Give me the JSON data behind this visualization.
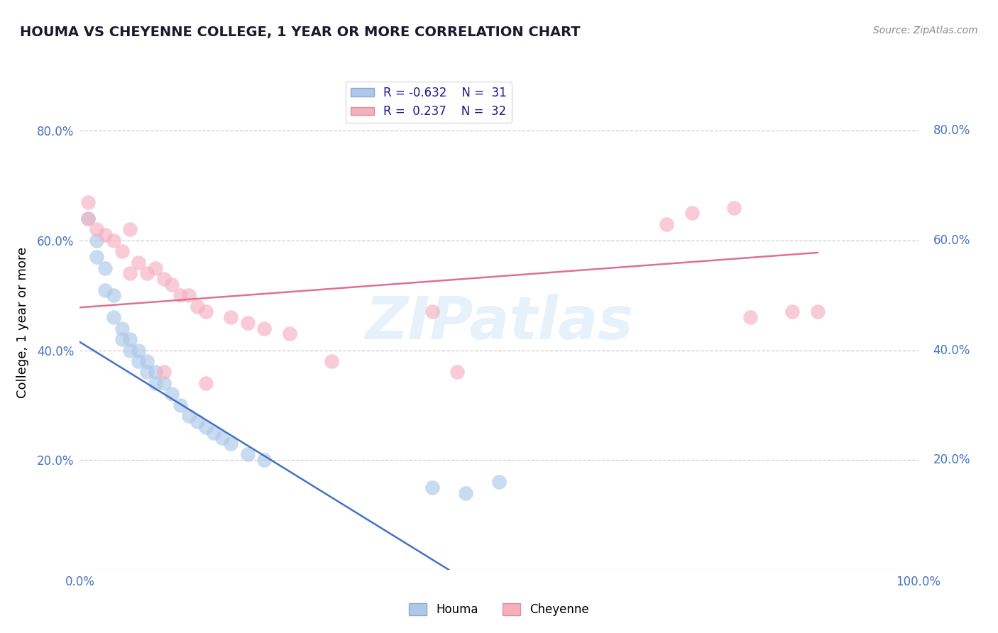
{
  "title": "HOUMA VS CHEYENNE COLLEGE, 1 YEAR OR MORE CORRELATION CHART",
  "source": "Source: ZipAtlas.com",
  "ylabel": "College, 1 year or more",
  "xlim": [
    0.0,
    1.0
  ],
  "ylim": [
    0.0,
    0.9
  ],
  "ytick_labels": [
    "20.0%",
    "40.0%",
    "60.0%",
    "80.0%"
  ],
  "ytick_values": [
    0.2,
    0.4,
    0.6,
    0.8
  ],
  "legend_houma_R": "-0.632",
  "legend_houma_N": "31",
  "legend_cheyenne_R": "0.237",
  "legend_cheyenne_N": "32",
  "houma_color": "#adc8e8",
  "cheyenne_color": "#f5b0c0",
  "houma_line_color": "#4472c4",
  "cheyenne_line_color": "#e07090",
  "watermark_text": "ZIPatlas",
  "houma_scatter_x": [
    0.01,
    0.02,
    0.02,
    0.03,
    0.03,
    0.04,
    0.04,
    0.05,
    0.05,
    0.06,
    0.06,
    0.07,
    0.07,
    0.08,
    0.08,
    0.09,
    0.09,
    0.1,
    0.11,
    0.12,
    0.13,
    0.14,
    0.15,
    0.16,
    0.17,
    0.18,
    0.2,
    0.22,
    0.42,
    0.46,
    0.5
  ],
  "houma_scatter_y": [
    0.64,
    0.6,
    0.57,
    0.55,
    0.51,
    0.5,
    0.46,
    0.44,
    0.42,
    0.42,
    0.4,
    0.4,
    0.38,
    0.38,
    0.36,
    0.36,
    0.34,
    0.34,
    0.32,
    0.3,
    0.28,
    0.27,
    0.26,
    0.25,
    0.24,
    0.23,
    0.21,
    0.2,
    0.15,
    0.14,
    0.16
  ],
  "cheyenne_scatter_x": [
    0.01,
    0.01,
    0.02,
    0.03,
    0.04,
    0.05,
    0.06,
    0.07,
    0.08,
    0.09,
    0.1,
    0.11,
    0.12,
    0.13,
    0.14,
    0.15,
    0.18,
    0.2,
    0.22,
    0.25,
    0.3,
    0.42,
    0.7,
    0.73,
    0.78,
    0.8,
    0.85,
    0.88,
    0.06,
    0.1,
    0.15,
    0.45
  ],
  "cheyenne_scatter_y": [
    0.67,
    0.64,
    0.62,
    0.61,
    0.6,
    0.58,
    0.62,
    0.56,
    0.54,
    0.55,
    0.53,
    0.52,
    0.5,
    0.5,
    0.48,
    0.47,
    0.46,
    0.45,
    0.44,
    0.43,
    0.38,
    0.47,
    0.63,
    0.65,
    0.66,
    0.46,
    0.47,
    0.47,
    0.54,
    0.36,
    0.34,
    0.36
  ],
  "houma_line_x0": 0.0,
  "houma_line_y0": 0.415,
  "houma_line_x1": 0.44,
  "houma_line_y1": 0.0,
  "cheyenne_line_x0": 0.0,
  "cheyenne_line_y0": 0.478,
  "cheyenne_line_x1": 0.88,
  "cheyenne_line_y1": 0.578,
  "grid_color": "#cccccc",
  "grid_linestyle": "--",
  "background_color": "#ffffff",
  "legend_bottom_labels": [
    "Houma",
    "Cheyenne"
  ],
  "title_color": "#1a1a2e",
  "axis_label_color": "#4472c4",
  "legend_text_color": "#1a1a8c"
}
